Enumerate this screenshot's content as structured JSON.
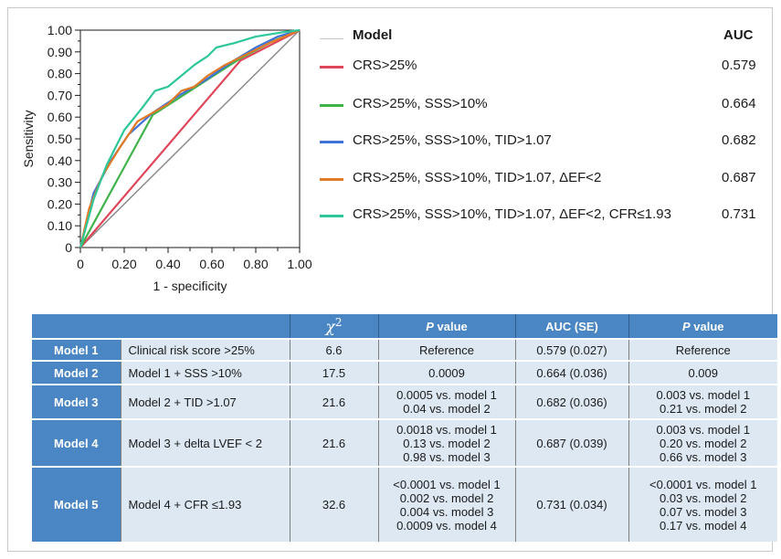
{
  "chart_data": {
    "type": "line",
    "xlabel": "1 - specificity",
    "ylabel": "Sensitivity",
    "xlim": [
      0,
      1
    ],
    "ylim": [
      0,
      1
    ],
    "x_ticks": [
      "0",
      "0.20",
      "0.40",
      "0.60",
      "0.80",
      "1.00"
    ],
    "y_ticks": [
      "0",
      "0.10",
      "0.20",
      "0.30",
      "0.40",
      "0.50",
      "0.60",
      "0.70",
      "0.80",
      "0.90",
      "1.00"
    ],
    "grid": false,
    "series": [
      {
        "name": "Reference",
        "color": "#8c8c8c",
        "points": [
          [
            0,
            0
          ],
          [
            1,
            1
          ]
        ]
      },
      {
        "name": "CRS>25%",
        "color": "#e0455a",
        "points": [
          [
            0,
            0
          ],
          [
            0.73,
            0.86
          ],
          [
            1,
            1
          ]
        ]
      },
      {
        "name": "CRS>25%, SSS>10%",
        "color": "#3fb34a",
        "points": [
          [
            0,
            0
          ],
          [
            0.33,
            0.61
          ],
          [
            0.73,
            0.87
          ],
          [
            0.88,
            0.95
          ],
          [
            1,
            1
          ]
        ]
      },
      {
        "name": "CRS>25%, SSS>10%, TID>1.07",
        "color": "#3f72d8",
        "points": [
          [
            0,
            0
          ],
          [
            0.06,
            0.25
          ],
          [
            0.14,
            0.4
          ],
          [
            0.22,
            0.52
          ],
          [
            0.33,
            0.62
          ],
          [
            0.45,
            0.7
          ],
          [
            0.57,
            0.77
          ],
          [
            0.7,
            0.86
          ],
          [
            0.8,
            0.92
          ],
          [
            0.9,
            0.97
          ],
          [
            1,
            1
          ]
        ]
      },
      {
        "name": "CRS>25%, SSS>10%, TID>1.07, ΔEF<2",
        "color": "#e27a26",
        "points": [
          [
            0,
            0
          ],
          [
            0.04,
            0.18
          ],
          [
            0.1,
            0.33
          ],
          [
            0.18,
            0.46
          ],
          [
            0.26,
            0.58
          ],
          [
            0.33,
            0.62
          ],
          [
            0.4,
            0.66
          ],
          [
            0.46,
            0.72
          ],
          [
            0.52,
            0.74
          ],
          [
            0.58,
            0.79
          ],
          [
            0.66,
            0.84
          ],
          [
            0.76,
            0.89
          ],
          [
            0.86,
            0.94
          ],
          [
            1,
            1
          ]
        ]
      },
      {
        "name": "CRS>25%, SSS>10%, TID>1.07, ΔEF<2, CFR≤1.93",
        "color": "#2ec79a",
        "points": [
          [
            0,
            0
          ],
          [
            0.06,
            0.22
          ],
          [
            0.12,
            0.38
          ],
          [
            0.2,
            0.54
          ],
          [
            0.28,
            0.64
          ],
          [
            0.34,
            0.72
          ],
          [
            0.4,
            0.74
          ],
          [
            0.46,
            0.79
          ],
          [
            0.52,
            0.84
          ],
          [
            0.58,
            0.88
          ],
          [
            0.62,
            0.92
          ],
          [
            0.7,
            0.94
          ],
          [
            0.8,
            0.97
          ],
          [
            0.92,
            0.99
          ],
          [
            1,
            1
          ]
        ]
      }
    ],
    "legend": {
      "position": "right",
      "header_model": "Model",
      "header_auc": "AUC",
      "entries": [
        {
          "label": "CRS>25%",
          "auc": "0.579",
          "color": "#e0455a"
        },
        {
          "label": "CRS>25%, SSS>10%",
          "auc": "0.664",
          "color": "#3fb34a"
        },
        {
          "label": "CRS>25%, SSS>10%, TID>1.07",
          "auc": "0.682",
          "color": "#3f72d8"
        },
        {
          "label": "CRS>25%, SSS>10%, TID>1.07, ΔEF<2",
          "auc": "0.687",
          "color": "#e27a26"
        },
        {
          "label": "CRS>25%, SSS>10%, TID>1.07, ΔEF<2, CFR≤1.93",
          "auc": "0.731",
          "color": "#2ec79a"
        }
      ]
    }
  },
  "table": {
    "headers": {
      "chi": "χ",
      "chi_sup": "2",
      "pvalue_1": "P",
      "pvalue_1_suffix": " value",
      "auc": "AUC (SE)",
      "pvalue_2": "P",
      "pvalue_2_suffix": " value"
    },
    "rows": [
      {
        "model": "Model 1",
        "desc": "Clinical risk score >25%",
        "chi2": "6.6",
        "p1": [
          "Reference"
        ],
        "auc": "0.579 (0.027)",
        "p2": [
          "Reference"
        ]
      },
      {
        "model": "Model 2",
        "desc": "Model 1 + SSS >10%",
        "chi2": "17.5",
        "p1": [
          "0.0009"
        ],
        "auc": "0.664 (0.036)",
        "p2": [
          "0.009"
        ]
      },
      {
        "model": "Model 3",
        "desc": "Model 2 + TID >1.07",
        "chi2": "21.6",
        "p1": [
          "0.0005 vs. model 1",
          "0.04 vs. model 2"
        ],
        "auc": "0.682 (0.036)",
        "p2": [
          "0.003 vs. model 1",
          "0.21 vs. model 2"
        ]
      },
      {
        "model": "Model 4",
        "desc": "Model 3 + delta LVEF < 2",
        "chi2": "21.6",
        "p1": [
          "0.0018 vs. model 1",
          "0.13 vs. model 2",
          "0.98 vs. model 3"
        ],
        "auc": "0.687 (0.039)",
        "p2": [
          "0.003 vs. model 1",
          "0.20 vs. model 2",
          "0.66 vs. model 3"
        ]
      },
      {
        "model": "Model 5",
        "desc": "Model 4 + CFR ≤1.93",
        "chi2": "32.6",
        "p1": [
          "<0.0001 vs. model 1",
          "0.002 vs. model 2",
          "0.004 vs. model 3",
          "0.0009 vs. model 4"
        ],
        "auc": "0.731 (0.034)",
        "p2": [
          "<0.0001 vs. model 1",
          "0.03 vs. model 2",
          "0.07 vs. model 3",
          "0.17 vs. model 4"
        ]
      }
    ]
  }
}
